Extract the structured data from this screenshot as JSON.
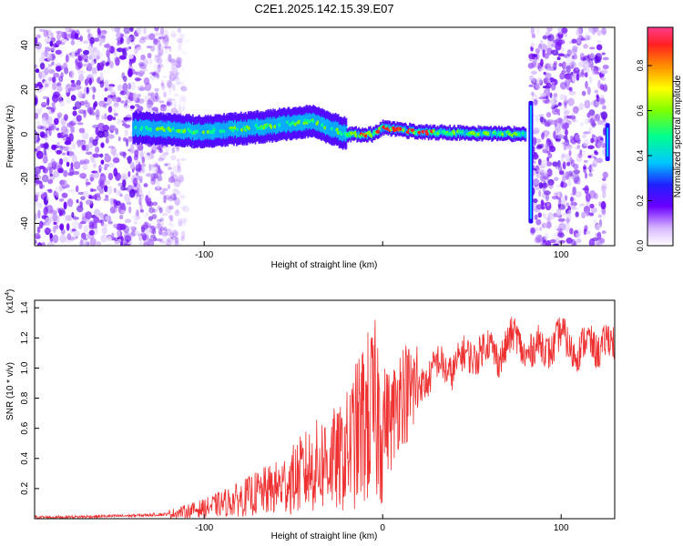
{
  "title": "C2E1.2025.142.15.39.E07",
  "chart_data": [
    {
      "type": "heatmap",
      "xlabel": "Height of straight line (km)",
      "ylabel": "Frequency (Hz)",
      "xlim": [
        -195,
        130
      ],
      "ylim": [
        -50,
        48
      ],
      "x_ticks": [
        -100,
        0,
        100
      ],
      "x_tick_labels": [
        "-100",
        "",
        "100"
      ],
      "y_ticks": [
        -40,
        -20,
        0,
        20,
        40
      ],
      "y_tick_labels": [
        "-40",
        "-20",
        "0",
        "20",
        "40"
      ],
      "colorbar": {
        "label": "Normalized spectral amplitude",
        "range": [
          0,
          0.97
        ],
        "ticks": [
          0,
          0.2,
          0.4,
          0.6,
          0.8
        ],
        "tick_labels": [
          "0.0",
          "0.2",
          "0.4",
          "0.6",
          "0.8"
        ]
      },
      "features": [
        {
          "kind": "noise-speckle",
          "x_range": [
            -195,
            -110
          ],
          "y_range": [
            -50,
            48
          ]
        },
        {
          "kind": "signal-band",
          "center_hz": [
            [
              -140,
              3
            ],
            [
              -100,
              1
            ],
            [
              -60,
              4
            ],
            [
              -40,
              6
            ],
            [
              -20,
              0
            ],
            [
              -5,
              0
            ],
            [
              0,
              3
            ],
            [
              20,
              1
            ],
            [
              80,
              0
            ]
          ]
        },
        {
          "kind": "noise-speckle",
          "x_range": [
            83,
            125
          ],
          "y_range": [
            -50,
            48
          ]
        },
        {
          "kind": "spike",
          "x": 83,
          "y_range": [
            -40,
            15
          ]
        },
        {
          "kind": "spike",
          "x": 126,
          "y_range": [
            -12,
            5
          ]
        }
      ],
      "grid": false
    },
    {
      "type": "line",
      "xlabel": "Height of straight line (km)",
      "ylabel": "SNR (10 * v/v)",
      "y_multiplier": "(x10^4)",
      "xlim": [
        -195,
        130
      ],
      "ylim": [
        0,
        1.45
      ],
      "x_ticks": [
        -100,
        0,
        100
      ],
      "x_tick_labels": [
        "-100",
        "0",
        "100"
      ],
      "y_ticks": [
        0.2,
        0.4,
        0.6,
        0.8,
        1.0,
        1.2,
        1.4
      ],
      "y_tick_labels": [
        "0.2",
        "0.4",
        "0.6",
        "0.8",
        "1.0",
        "1.2",
        "1.4"
      ],
      "color": "#ee3030",
      "series": [
        {
          "x": [
            -195,
            -180,
            -160,
            -140,
            -120,
            -110,
            -100,
            -90,
            -80,
            -70,
            -60,
            -50,
            -45,
            -40,
            -35,
            -30,
            -25,
            -20,
            -15,
            -10,
            -5,
            0,
            5,
            10,
            15,
            20,
            25,
            30,
            35,
            40,
            45,
            50,
            55,
            60,
            65,
            70,
            75,
            80,
            85,
            90,
            95,
            100,
            105,
            110,
            115,
            120,
            125,
            130
          ],
          "y": [
            0.01,
            0.01,
            0.015,
            0.02,
            0.03,
            0.05,
            0.07,
            0.1,
            0.13,
            0.17,
            0.2,
            0.26,
            0.3,
            0.33,
            0.36,
            0.4,
            0.38,
            0.45,
            0.55,
            0.65,
            0.7,
            0.68,
            0.65,
            0.85,
            0.83,
            0.9,
            0.95,
            1.0,
            1.0,
            1.02,
            1.05,
            1.1,
            1.12,
            1.12,
            1.1,
            1.15,
            1.2,
            1.12,
            1.1,
            1.15,
            1.15,
            1.2,
            1.15,
            1.12,
            1.15,
            1.15,
            1.18,
            1.12
          ]
        }
      ],
      "grid": false
    }
  ]
}
